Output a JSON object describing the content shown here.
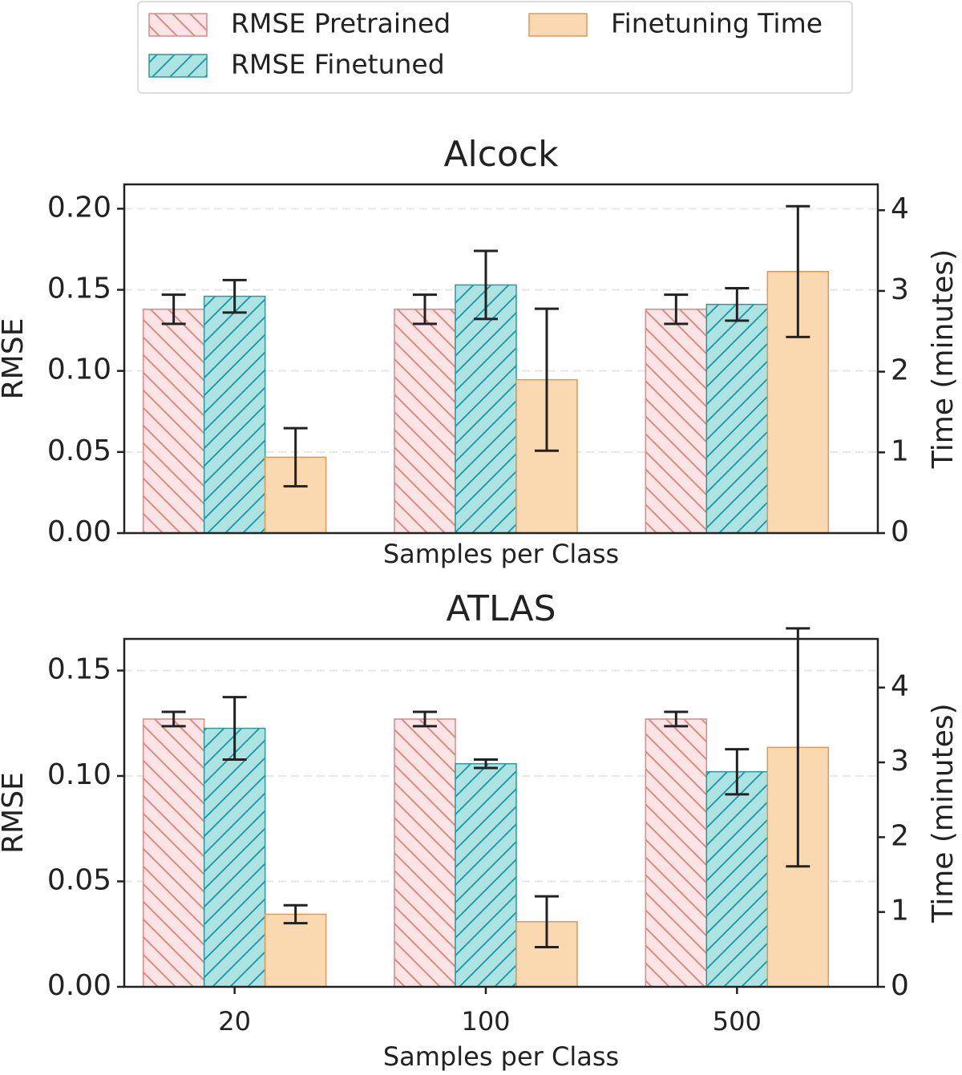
{
  "chart_data": [
    {
      "type": "bar",
      "title": "Alcock",
      "xlabel": "Samples per Class",
      "ylabel": "RMSE",
      "y2label": "Time (minutes)",
      "categories": [
        null,
        null,
        null
      ],
      "ylim": [
        0,
        0.215
      ],
      "yticks": [
        {
          "value": 0,
          "label": "0.00"
        },
        {
          "value": 0.05,
          "label": "0.05"
        },
        {
          "value": 0.1,
          "label": "0.10"
        },
        {
          "value": 0.15,
          "label": "0.15"
        },
        {
          "value": 0.2,
          "label": "0.20"
        }
      ],
      "y2lim": [
        0,
        4.32
      ],
      "y2ticks": [
        0,
        1,
        2,
        3,
        4
      ],
      "grid": true,
      "series": [
        {
          "name": "RMSE Pretrained",
          "color": "#fde4e4",
          "edgecolor": "#d98a84",
          "hatch": "\\",
          "values": [
            0.138,
            0.138,
            0.138
          ],
          "errors": [
            0.009,
            0.009,
            0.009
          ]
        },
        {
          "name": "RMSE Finetuned",
          "color": "#aee3e4",
          "edgecolor": "#2a9a9e",
          "hatch": "/",
          "values": [
            0.146,
            0.153,
            0.141
          ],
          "errors": [
            0.01,
            0.021,
            0.01
          ]
        },
        {
          "name": "Finetuning Time",
          "color": "#fbd9b0",
          "edgecolor": "#d99a5a",
          "axis": "y2",
          "values": [
            0.94,
            1.9,
            3.24
          ],
          "errors": [
            0.36,
            0.88,
            0.81
          ]
        }
      ]
    },
    {
      "type": "bar",
      "title": "ATLAS",
      "xlabel": "Samples per Class",
      "ylabel": "RMSE",
      "y2label": "Time (minutes)",
      "categories": [
        "20",
        "100",
        "500"
      ],
      "ylim": [
        0,
        0.165
      ],
      "yticks": [
        {
          "value": 0,
          "label": "0.00"
        },
        {
          "value": 0.05,
          "label": "0.05"
        },
        {
          "value": 0.1,
          "label": "0.10"
        },
        {
          "value": 0.15,
          "label": "0.15"
        }
      ],
      "y2lim": [
        0,
        4.65
      ],
      "y2ticks": [
        0,
        1,
        2,
        3,
        4
      ],
      "grid": true,
      "series": [
        {
          "color": "#fde4e4",
          "edgecolor": "#d98a84",
          "hatch": "\\",
          "values": [
            0.127,
            0.127,
            0.127
          ],
          "errors": [
            0.0034,
            0.0034,
            0.0034
          ]
        },
        {
          "color": "#aee3e4",
          "edgecolor": "#2a9a9e",
          "hatch": "/",
          "values": [
            0.1226,
            0.1058,
            0.102
          ],
          "errors": [
            0.0148,
            0.002,
            0.0107
          ]
        },
        {
          "color": "#fbd9b0",
          "edgecolor": "#d99a5a",
          "axis": "y2",
          "values": [
            0.97,
            0.87,
            3.2
          ],
          "errors": [
            0.12,
            0.34,
            1.59
          ]
        }
      ]
    }
  ]
}
